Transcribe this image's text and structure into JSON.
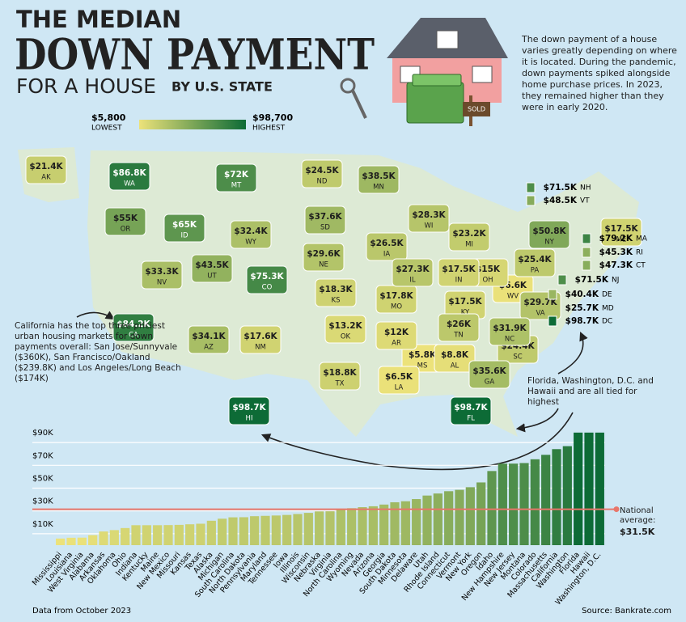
{
  "header": {
    "title_line1": "THE MEDIAN",
    "title_line2": "DOWN PAYMENT",
    "title_line3": "FOR A HOUSE",
    "title_suffix": "BY U.S. STATE",
    "intro": "The down payment of a house varies greatly depending on where it is located. During the pandemic, down payments spiked alongside home purchase prices. In 2023, they remained higher than they were in early 2020."
  },
  "chart_data": [
    {
      "type": "map",
      "color_scale": {
        "min": {
          "value": 5.8,
          "label": "$5,800"
        },
        "min_label": "LOWEST",
        "max": {
          "value": 98.7,
          "label": "$98,700"
        },
        "max_label": "HIGHEST",
        "low_color": "#ece27a",
        "high_color": "#0d6b36"
      },
      "regions": [
        "MS",
        "LA",
        "WV",
        "AL",
        "AR",
        "OK",
        "OH",
        "IN",
        "KY",
        "ME",
        "NM",
        "MO",
        "KS",
        "TX",
        "AK",
        "MI",
        "SC",
        "ND",
        "PA",
        "MD",
        "TN",
        "IA",
        "IL",
        "WI",
        "NE",
        "VA",
        "NC",
        "WY",
        "NV",
        "AZ",
        "GA",
        "SD",
        "MN",
        "DE",
        "UT",
        "RI",
        "CT",
        "VT",
        "NY",
        "OR",
        "ID",
        "NH",
        "NJ",
        "MT",
        "CO",
        "MA",
        "CA",
        "WA",
        "FL",
        "HI",
        "DC"
      ],
      "values": [
        5.8,
        6.5,
        6.6,
        8.8,
        12,
        13.2,
        15,
        17.5,
        17.5,
        17.5,
        17.6,
        17.8,
        18.3,
        18.8,
        21.4,
        23.2,
        24.4,
        24.5,
        25.4,
        25.7,
        26,
        26.5,
        27.3,
        28.3,
        29.6,
        29.7,
        31.9,
        32.4,
        33.3,
        34.1,
        35.6,
        37.6,
        38.5,
        40.4,
        43.5,
        45.3,
        47.3,
        48.5,
        50.8,
        55,
        65,
        71.5,
        71.5,
        72,
        75.3,
        79.2,
        84.2,
        86.8,
        98.7,
        98.7,
        98.7
      ],
      "value_labels": [
        "$5.8K",
        "$6.5K",
        "$6.6K",
        "$8.8K",
        "$12K",
        "$13.2K",
        "$15K",
        "$17.5K",
        "$17.5K",
        "$17.5K",
        "$17.6K",
        "$17.8K",
        "$18.3K",
        "$18.8K",
        "$21.4K",
        "$23.2K",
        "$24.4K",
        "$24.5K",
        "$25.4K",
        "$25.7K",
        "$26K",
        "$26.5K",
        "$27.3K",
        "$28.3K",
        "$29.6K",
        "$29.7K",
        "$31.9K",
        "$32.4K",
        "$33.3K",
        "$34.1K",
        "$35.6K",
        "$37.6K",
        "$38.5K",
        "$40.4K",
        "$43.5K",
        "$45.3K",
        "$47.3K",
        "$48.5K",
        "$50.8K",
        "$55K",
        "$65K",
        "$71.5K",
        "$71.5K",
        "$72K",
        "$75.3K",
        "$79.2K",
        "$84.2K",
        "$86.8K",
        "$98.7K",
        "$98.7K",
        "$98.7K"
      ],
      "annotations": [
        "California has the top three priciest urban housing markets for down payments overall: San Jose/Sunnyvale ($360K), San Francisco/Oakland ($239.8K) and Los Angeles/Long Beach ($174K)",
        "Florida, Washington, D.C. and Hawaii and  are all tied for highest"
      ]
    },
    {
      "type": "bar",
      "categories": [
        "Mississippi",
        "Louisiana",
        "West Virginia",
        "Alabama",
        "Arkansas",
        "Oklahoma",
        "Ohio",
        "Indiana",
        "Kentucky",
        "Maine",
        "New Mexico",
        "Missouri",
        "Kansas",
        "Texas",
        "Alaska",
        "Michigan",
        "South Carolina",
        "North Dakota",
        "Pennsylvania",
        "Maryland",
        "Tennessee",
        "Iowa",
        "Illinois",
        "Wisconsin",
        "Nebraska",
        "Virginia",
        "North Carolina",
        "Wyoming",
        "Nevada",
        "Arizona",
        "Georgia",
        "South Dakota",
        "Minnesota",
        "Delaware",
        "Utah",
        "Rhode Island",
        "Connecticut",
        "Vermont",
        "New York",
        "Oregon",
        "Idaho",
        "New Hampshire",
        "New Jersey",
        "Montana",
        "Colorado",
        "Massachusetts",
        "California",
        "Washington",
        "Florida",
        "Hawaii",
        "Washington, D.C."
      ],
      "values": [
        5.8,
        6.5,
        6.6,
        8.8,
        12,
        13.2,
        15,
        17.5,
        17.5,
        17.5,
        17.6,
        17.8,
        18.3,
        18.8,
        21.4,
        23.2,
        24.4,
        24.5,
        25.4,
        25.7,
        26,
        26.5,
        27.3,
        28.3,
        29.6,
        29.7,
        31.9,
        32.4,
        33.3,
        34.1,
        35.6,
        37.6,
        38.5,
        40.4,
        43.5,
        45.3,
        47.3,
        48.5,
        50.8,
        55,
        65,
        71.5,
        71.5,
        72,
        75.3,
        79.2,
        84.2,
        86.8,
        98.7,
        98.7,
        98.7
      ],
      "ylim": [
        0,
        100
      ],
      "yticks": [
        {
          "value": 10,
          "label": "$10K"
        },
        {
          "value": 30,
          "label": "$30K"
        },
        {
          "value": 50,
          "label": "$50K"
        },
        {
          "value": 70,
          "label": "$70K"
        },
        {
          "value": 90,
          "label": "$90K"
        }
      ],
      "grid": true,
      "reference_line": {
        "value": 31.5,
        "label": "National average:",
        "value_label": "$31.5K",
        "color": "#e8766a"
      }
    }
  ],
  "footer": {
    "note": "Data from October 2023",
    "source": "Source: Bankrate.com"
  }
}
